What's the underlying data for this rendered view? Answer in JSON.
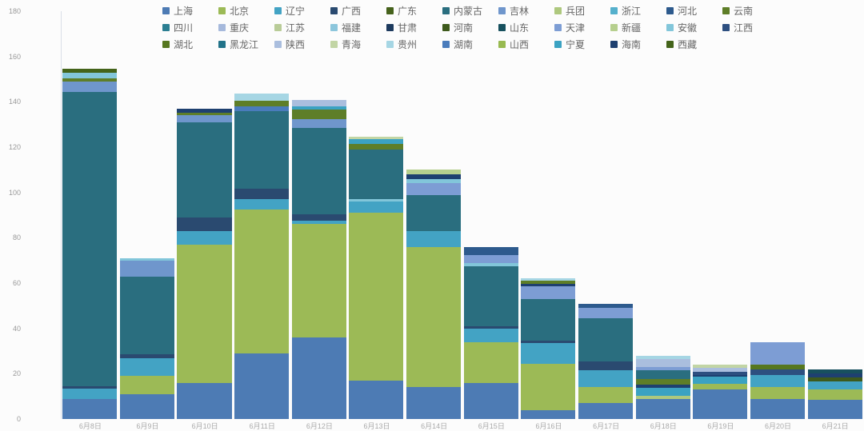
{
  "chart_data": {
    "type": "bar",
    "stacked": true,
    "legend_position": "top",
    "grid": false,
    "background": "#fcfcfc",
    "x_categories": [
      "6月8日",
      "6月9日",
      "6月10日",
      "6月11日",
      "6月12日",
      "6月13日",
      "6月14日",
      "6月15日",
      "6月16日",
      "6月17日",
      "6月18日",
      "6月19日",
      "6月20日",
      "6月21日"
    ],
    "y_axis": {
      "min": 0,
      "max": 180,
      "step": 20,
      "tick_labels": [
        "0",
        "20",
        "40",
        "60",
        "80",
        "100",
        "120",
        "140",
        "160",
        "180"
      ]
    },
    "series": [
      {
        "name": "上海",
        "color": "#4d7bb4"
      },
      {
        "name": "北京",
        "color": "#9cba56"
      },
      {
        "name": "辽宁",
        "color": "#43a3c4"
      },
      {
        "name": "广西",
        "color": "#2a4a70"
      },
      {
        "name": "广东",
        "color": "#46621c"
      },
      {
        "name": "内蒙古",
        "color": "#2a6e7f"
      },
      {
        "name": "吉林",
        "color": "#6f96cc"
      },
      {
        "name": "兵团",
        "color": "#aec87e"
      },
      {
        "name": "浙江",
        "color": "#55b0cc"
      },
      {
        "name": "河北",
        "color": "#2d5a8d"
      },
      {
        "name": "云南",
        "color": "#5e7e28"
      },
      {
        "name": "四川",
        "color": "#2b7e92"
      },
      {
        "name": "重庆",
        "color": "#a6b9dc"
      },
      {
        "name": "江苏",
        "color": "#b9cc98"
      },
      {
        "name": "福建",
        "color": "#8cc6dc"
      },
      {
        "name": "甘肃",
        "color": "#1d3a5e"
      },
      {
        "name": "河南",
        "color": "#3e5a1c"
      },
      {
        "name": "山东",
        "color": "#17505e"
      },
      {
        "name": "天津",
        "color": "#7d9dd4"
      },
      {
        "name": "新疆",
        "color": "#b6cf8e"
      },
      {
        "name": "安徽",
        "color": "#82c6da"
      },
      {
        "name": "江西",
        "color": "#2d4f80"
      },
      {
        "name": "湖北",
        "color": "#56771f"
      },
      {
        "name": "黑龙江",
        "color": "#227389"
      },
      {
        "name": "陕西",
        "color": "#aabede"
      },
      {
        "name": "青海",
        "color": "#c2d5a5"
      },
      {
        "name": "贵州",
        "color": "#a6d6e4"
      },
      {
        "name": "湖南",
        "color": "#4a7cbc"
      },
      {
        "name": "山西",
        "color": "#98ba50"
      },
      {
        "name": "宁夏",
        "color": "#3ba2c2"
      },
      {
        "name": "海南",
        "color": "#1e4070"
      },
      {
        "name": "西藏",
        "color": "#44641a"
      }
    ],
    "bars": [
      {
        "category": "6月8日",
        "total": 154.5,
        "segments": [
          [
            "上海",
            9
          ],
          [
            "辽宁",
            4.5
          ],
          [
            "广西",
            1
          ],
          [
            "内蒙古",
            130
          ],
          [
            "吉林",
            4.5
          ],
          [
            "云南",
            1.5
          ],
          [
            "安徽",
            2.5
          ],
          [
            "西藏",
            1.5
          ]
        ]
      },
      {
        "category": "6月9日",
        "total": 71,
        "segments": [
          [
            "上海",
            11
          ],
          [
            "北京",
            8
          ],
          [
            "辽宁",
            8
          ],
          [
            "广西",
            1.5
          ],
          [
            "内蒙古",
            34.5
          ],
          [
            "吉林",
            7
          ],
          [
            "安徽",
            1
          ]
        ]
      },
      {
        "category": "6月10日",
        "total": 137,
        "segments": [
          [
            "上海",
            16
          ],
          [
            "北京",
            61
          ],
          [
            "辽宁",
            6
          ],
          [
            "广西",
            6
          ],
          [
            "内蒙古",
            42
          ],
          [
            "吉林",
            3
          ],
          [
            "云南",
            1.2
          ],
          [
            "海南",
            1.8
          ]
        ]
      },
      {
        "category": "6月11日",
        "total": 143.5,
        "segments": [
          [
            "上海",
            29
          ],
          [
            "北京",
            63.5
          ],
          [
            "辽宁",
            4.5
          ],
          [
            "广西",
            4.5
          ],
          [
            "内蒙古",
            34.5
          ],
          [
            "湖南",
            2
          ],
          [
            "云南",
            2.5
          ],
          [
            "贵州",
            3
          ]
        ]
      },
      {
        "category": "6月12日",
        "total": 141,
        "segments": [
          [
            "上海",
            36
          ],
          [
            "北京",
            50
          ],
          [
            "辽宁",
            1.5
          ],
          [
            "广西",
            3
          ],
          [
            "内蒙古",
            38
          ],
          [
            "吉林",
            4
          ],
          [
            "云南",
            4
          ],
          [
            "宁夏",
            1.5
          ],
          [
            "陕西",
            3
          ]
        ]
      },
      {
        "category": "6月13日",
        "total": 124.5,
        "segments": [
          [
            "上海",
            17
          ],
          [
            "北京",
            74
          ],
          [
            "辽宁",
            5
          ],
          [
            "安徽",
            1
          ],
          [
            "内蒙古",
            22
          ],
          [
            "云南",
            2.5
          ],
          [
            "宁夏",
            2
          ],
          [
            "青海",
            1
          ]
        ]
      },
      {
        "category": "6月14日",
        "total": 110,
        "segments": [
          [
            "上海",
            14
          ],
          [
            "北京",
            62
          ],
          [
            "辽宁",
            7
          ],
          [
            "内蒙古",
            16
          ],
          [
            "天津",
            5
          ],
          [
            "安徽",
            2
          ],
          [
            "海南",
            2
          ],
          [
            "新疆",
            2
          ]
        ]
      },
      {
        "category": "6月15日",
        "total": 76,
        "segments": [
          [
            "上海",
            16
          ],
          [
            "北京",
            18
          ],
          [
            "辽宁",
            6
          ],
          [
            "广西",
            1
          ],
          [
            "内蒙古",
            26.5
          ],
          [
            "安徽",
            1.5
          ],
          [
            "天津",
            3.5
          ],
          [
            "河北",
            3.5
          ]
        ]
      },
      {
        "category": "6月16日",
        "total": 62,
        "segments": [
          [
            "上海",
            4
          ],
          [
            "北京",
            20.5
          ],
          [
            "辽宁",
            9
          ],
          [
            "广西",
            1
          ],
          [
            "内蒙古",
            18.5
          ],
          [
            "天津",
            5.5
          ],
          [
            "海南",
            1
          ],
          [
            "云南",
            1.5
          ],
          [
            "贵州",
            1
          ]
        ]
      },
      {
        "category": "6月17日",
        "total": 51,
        "segments": [
          [
            "上海",
            7
          ],
          [
            "北京",
            7
          ],
          [
            "辽宁",
            7.5
          ],
          [
            "广西",
            4
          ],
          [
            "内蒙古",
            19
          ],
          [
            "天津",
            4.5
          ],
          [
            "河北",
            2
          ]
        ]
      },
      {
        "category": "6月18日",
        "total": 28,
        "segments": [
          [
            "上海",
            9
          ],
          [
            "兵团",
            1.4
          ],
          [
            "宁夏",
            3.5
          ],
          [
            "海南",
            1.4
          ],
          [
            "云南",
            2.2
          ],
          [
            "内蒙古",
            4.2
          ],
          [
            "天津",
            1.4
          ],
          [
            "陕西",
            3.5
          ],
          [
            "贵州",
            1.4
          ]
        ]
      },
      {
        "category": "6月19日",
        "total": 24,
        "segments": [
          [
            "上海",
            13
          ],
          [
            "北京",
            2.5
          ],
          [
            "宁夏",
            3.2
          ],
          [
            "海南",
            0.8
          ],
          [
            "江西",
            1.5
          ],
          [
            "陕西",
            1.7
          ],
          [
            "青海",
            1.3
          ]
        ]
      },
      {
        "category": "6月20日",
        "total": 34,
        "segments": [
          [
            "上海",
            9
          ],
          [
            "北京",
            5
          ],
          [
            "辽宁",
            5.5
          ],
          [
            "江西",
            2.5
          ],
          [
            "湖北",
            2
          ],
          [
            "天津",
            10
          ]
        ]
      },
      {
        "category": "6月21日",
        "total": 22,
        "segments": [
          [
            "上海",
            8.5
          ],
          [
            "北京",
            4.5
          ],
          [
            "辽宁",
            3.5
          ],
          [
            "河南",
            1.8
          ],
          [
            "海南",
            1.8
          ],
          [
            "山东",
            1.9
          ]
        ]
      }
    ],
    "layout": {
      "plot_left": 77,
      "plot_right": 1080,
      "plot_top": 14,
      "plot_bottom": 524,
      "bar_gap": 3.6
    }
  }
}
